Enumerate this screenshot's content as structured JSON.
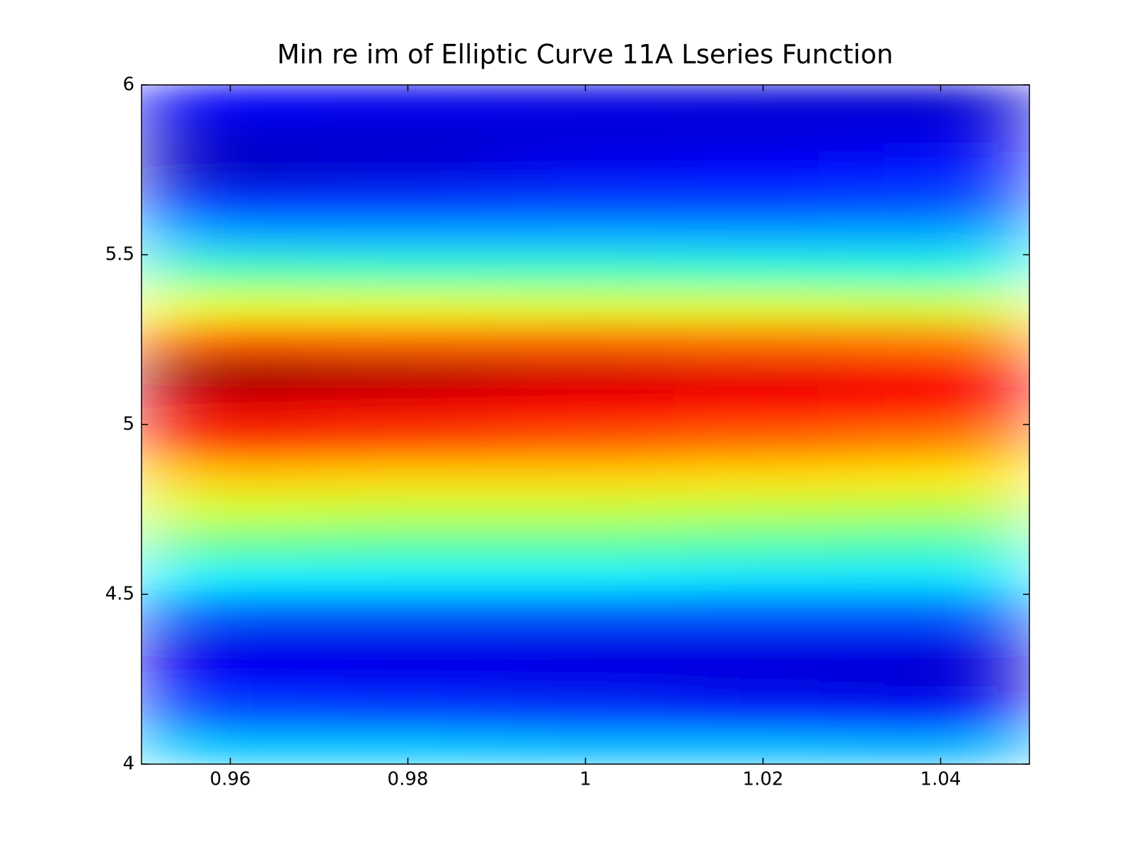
{
  "chart_data": {
    "type": "heatmap",
    "title": "Min re im of Elliptic Curve 11A Lseries Function",
    "colormap": "jet",
    "zlim": [
      0,
      1
    ],
    "x": [
      0.96,
      0.98,
      1.0,
      1.02,
      1.04
    ],
    "y": [
      4.05,
      4.15,
      4.25,
      4.35,
      4.45,
      4.55,
      4.65,
      4.75,
      4.85,
      4.95,
      5.05,
      5.15,
      5.25,
      5.35,
      5.45,
      5.55,
      5.65,
      5.75,
      5.85,
      5.95
    ],
    "z": [
      [
        0.32,
        0.32,
        0.31,
        0.31,
        0.3
      ],
      [
        0.2,
        0.19,
        0.18,
        0.16,
        0.15
      ],
      [
        0.12,
        0.11,
        0.1,
        0.09,
        0.08
      ],
      [
        0.1,
        0.1,
        0.1,
        0.1,
        0.1
      ],
      [
        0.22,
        0.22,
        0.22,
        0.22,
        0.22
      ],
      [
        0.36,
        0.36,
        0.36,
        0.35,
        0.35
      ],
      [
        0.48,
        0.47,
        0.47,
        0.46,
        0.45
      ],
      [
        0.58,
        0.57,
        0.57,
        0.56,
        0.55
      ],
      [
        0.68,
        0.67,
        0.67,
        0.66,
        0.65
      ],
      [
        0.83,
        0.81,
        0.79,
        0.77,
        0.75
      ],
      [
        0.9,
        0.89,
        0.88,
        0.86,
        0.85
      ],
      [
        0.97,
        0.95,
        0.92,
        0.9,
        0.88
      ],
      [
        0.78,
        0.77,
        0.77,
        0.76,
        0.75
      ],
      [
        0.6,
        0.6,
        0.59,
        0.59,
        0.58
      ],
      [
        0.45,
        0.44,
        0.44,
        0.43,
        0.42
      ],
      [
        0.3,
        0.3,
        0.3,
        0.3,
        0.3
      ],
      [
        0.18,
        0.18,
        0.19,
        0.19,
        0.2
      ],
      [
        0.07,
        0.09,
        0.11,
        0.13,
        0.15
      ],
      [
        0.08,
        0.08,
        0.09,
        0.09,
        0.1
      ],
      [
        0.12,
        0.11,
        0.1,
        0.09,
        0.08
      ]
    ],
    "xlim": [
      0.95,
      1.05
    ],
    "ylim": [
      4,
      6
    ],
    "xticks": [
      0.96,
      0.98,
      1,
      1.02,
      1.04
    ],
    "yticks": [
      4,
      4.5,
      5,
      5.5,
      6
    ]
  }
}
